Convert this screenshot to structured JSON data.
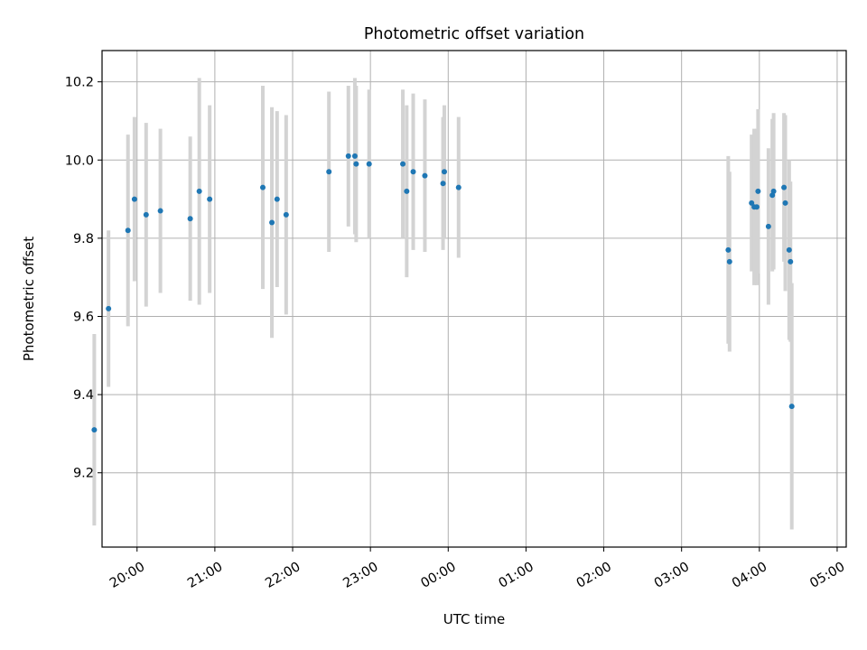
{
  "chart_data": {
    "type": "scatter",
    "title": "Photometric offset variation",
    "xlabel": "UTC time",
    "ylabel": "Photometric offset",
    "x_ticks": [
      "20:00",
      "21:00",
      "22:00",
      "23:00",
      "00:00",
      "01:00",
      "02:00",
      "03:00",
      "04:00",
      "05:00"
    ],
    "y_ticks": [
      "9.2",
      "9.4",
      "9.6",
      "9.8",
      "10.0",
      "10.2"
    ],
    "xlim": [
      "19:33",
      "05:07"
    ],
    "ylim": [
      9.01,
      10.28
    ],
    "grid": true,
    "point_color": "#1f77b4",
    "errorbar_color": "#d3d3d3",
    "series": [
      {
        "x": [
          "19:27",
          "19:38",
          "19:53",
          "19:58",
          "20:07",
          "20:18",
          "20:41",
          "20:48",
          "20:56",
          "21:37",
          "21:44",
          "21:48",
          "21:55",
          "22:28",
          "22:43",
          "22:48",
          "22:49",
          "22:59",
          "23:25",
          "23:28",
          "23:33",
          "23:42",
          "23:56",
          "23:57",
          "00:08",
          "03:36",
          "03:37",
          "03:54",
          "03:56",
          "03:58",
          "03:59",
          "04:07",
          "04:10",
          "04:11",
          "04:19",
          "04:20",
          "04:23",
          "04:24",
          "04:25"
        ],
        "y": [
          9.31,
          9.62,
          9.82,
          9.9,
          9.86,
          9.87,
          9.85,
          9.92,
          9.9,
          9.93,
          9.84,
          9.9,
          9.86,
          9.97,
          10.01,
          10.01,
          9.99,
          9.99,
          9.99,
          9.92,
          9.97,
          9.96,
          9.94,
          9.97,
          9.93,
          9.77,
          9.74,
          9.89,
          9.88,
          9.88,
          9.92,
          9.83,
          9.91,
          9.92,
          9.93,
          9.89,
          9.77,
          9.74,
          9.37
        ],
        "err": [
          0.245,
          0.2,
          0.245,
          0.21,
          0.235,
          0.21,
          0.21,
          0.29,
          0.24,
          0.26,
          0.295,
          0.225,
          0.255,
          0.205,
          0.18,
          0.2,
          0.2,
          0.19,
          0.19,
          0.22,
          0.2,
          0.195,
          0.17,
          0.17,
          0.18,
          0.24,
          0.23,
          0.175,
          0.2,
          0.2,
          0.21,
          0.2,
          0.195,
          0.2,
          0.19,
          0.225,
          0.23,
          0.205,
          0.315
        ]
      }
    ]
  }
}
